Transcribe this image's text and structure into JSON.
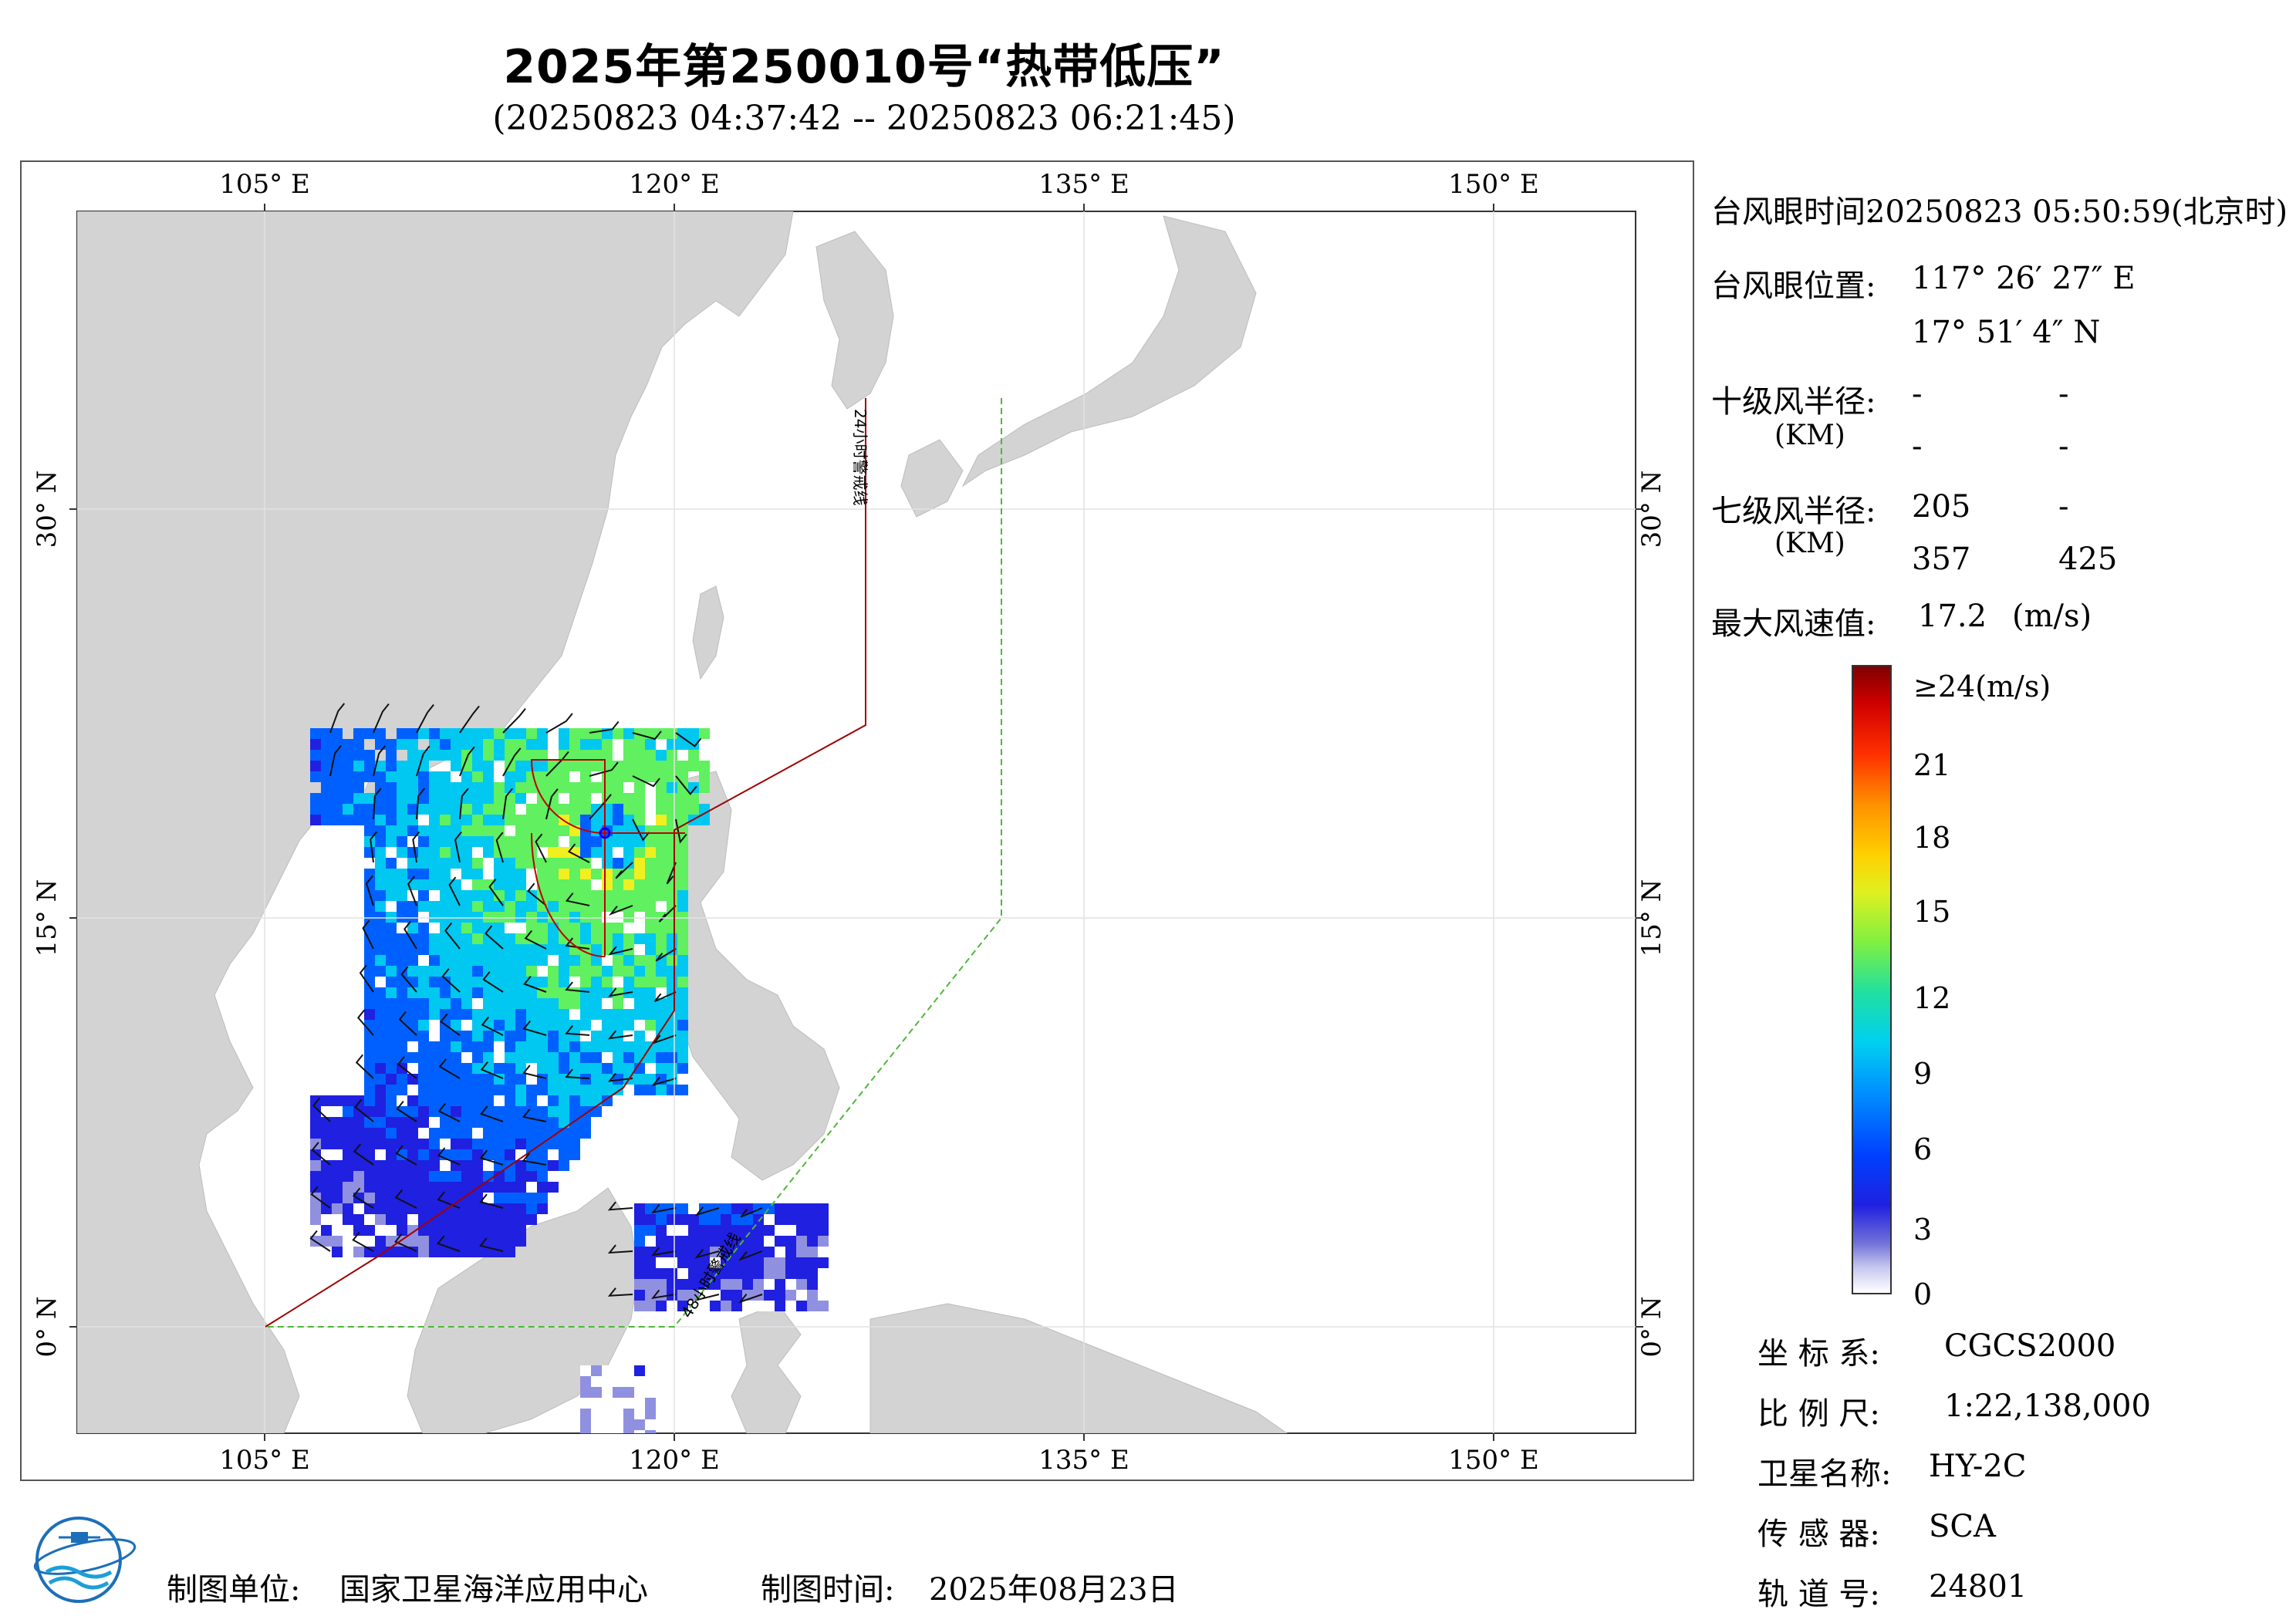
{
  "title": "2025年第250010号“热带低压”",
  "subtitle": "(20250823 04:37:42 -- 20250823 06:21:45)",
  "map": {
    "lon_ticks": [
      "105° E",
      "120° E",
      "135° E",
      "150° E"
    ],
    "lat_ticks": [
      "30° N",
      "15° N",
      "0° N"
    ],
    "warning_24h": "24小时警戒线",
    "warning_48h": "48小时警戒线",
    "colors": {
      "land": "#d3d3d3",
      "sea": "#ffffff",
      "warn24": "#a00000",
      "warn48": "#4fb83a",
      "radius": "#c00000"
    }
  },
  "info": {
    "eye_time_label": "台风眼时间:",
    "eye_time_value": "20250823 05:50:59(北京时)",
    "eye_pos_label": "台风眼位置:",
    "eye_lon": "117° 26′ 27″ E",
    "eye_lat": "17° 51′ 4″ N",
    "r10_label": "十级风半径:",
    "r_unit": "(KM)",
    "r10_values": [
      "-",
      "-",
      "-",
      "-"
    ],
    "r7_label": "七级风半径:",
    "r7_values": [
      "205",
      "-",
      "357",
      "425"
    ],
    "max_wind_label": "最大风速值:",
    "max_wind_value": "17.2",
    "max_wind_unit": "(m/s)"
  },
  "legend": {
    "labels": [
      "≥24(m/s)",
      "21",
      "18",
      "15",
      "12",
      "9",
      "6",
      "3",
      "0"
    ]
  },
  "meta": {
    "crs_label": "坐 标 系:",
    "crs_value": "CGCS2000",
    "scale_label": "比 例 尺:",
    "scale_value": "1:22,138,000",
    "satellite_label": "卫星名称:",
    "satellite_value": "HY-2C",
    "sensor_label": "传 感 器:",
    "sensor_value": "SCA",
    "orbit_label": "轨 道 号:",
    "orbit_value": "24801"
  },
  "footer": {
    "unit_label": "制图单位:",
    "unit_value": "国家卫星海洋应用中心",
    "date_label": "制图时间:",
    "date_value": "2025年08月23日",
    "logo_icon": "nsoas-logo-icon"
  }
}
